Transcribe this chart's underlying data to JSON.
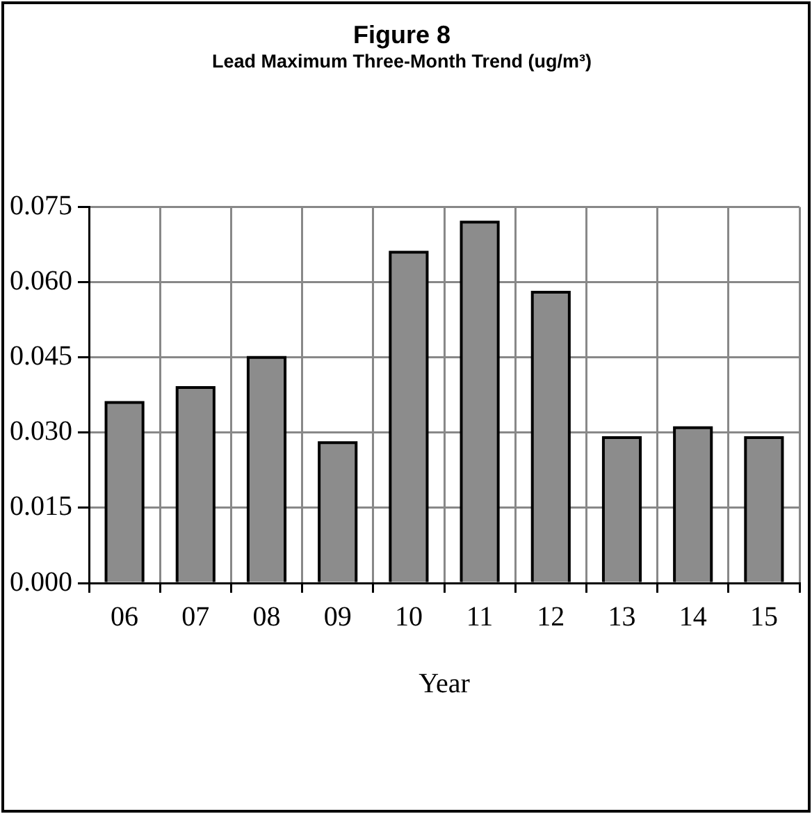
{
  "chart_data": {
    "type": "bar",
    "title": "Figure 8",
    "subtitle": "Lead Maximum Three-Month Trend (ug/m³)",
    "xlabel": "Year",
    "categories": [
      "06",
      "07",
      "08",
      "09",
      "10",
      "11",
      "12",
      "13",
      "14",
      "15"
    ],
    "values": [
      0.036,
      0.039,
      0.045,
      0.028,
      0.066,
      0.072,
      0.058,
      0.029,
      0.031,
      0.029
    ],
    "color": "#8c8c8c",
    "ylim": [
      0,
      0.075
    ],
    "yticks": [
      {
        "value": 0,
        "label": "0.000"
      },
      {
        "value": 0.015,
        "label": "0.015"
      },
      {
        "value": 0.03,
        "label": "0.030"
      },
      {
        "value": 0.045,
        "label": "0.045"
      },
      {
        "value": 0.06,
        "label": "0.060"
      },
      {
        "value": 0.075,
        "label": "0.075"
      }
    ],
    "grid": true,
    "legend": false
  }
}
